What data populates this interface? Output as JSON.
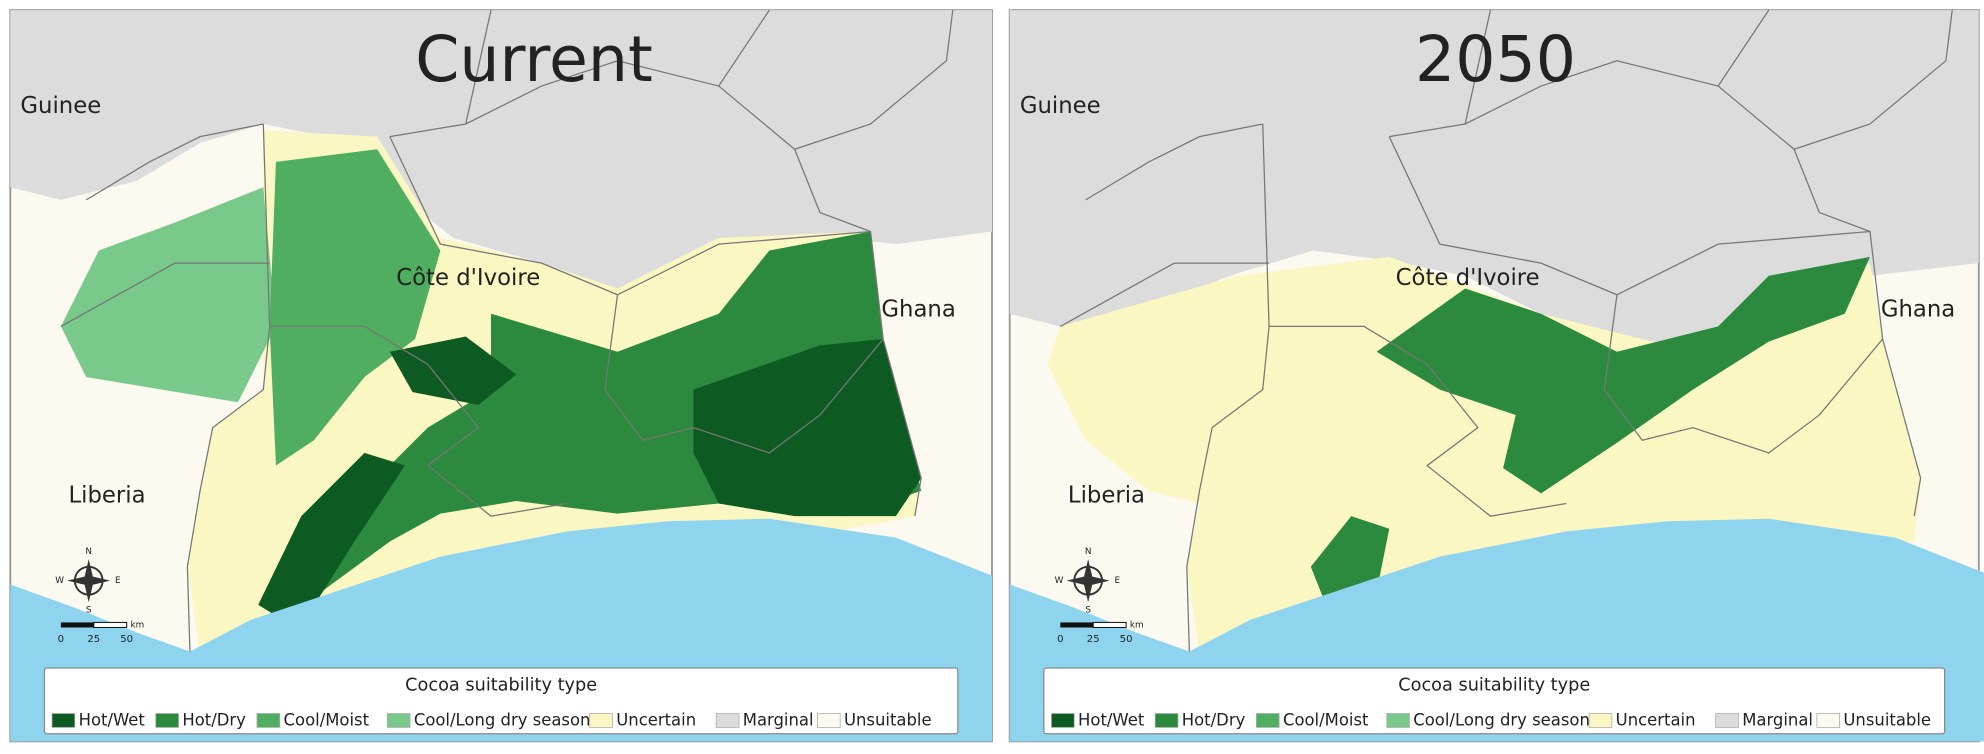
{
  "panels": [
    {
      "title": "Current"
    },
    {
      "title": "2050"
    }
  ],
  "places": [
    "Guinee",
    "Côte d'Ivoire",
    "Ghana",
    "Liberia"
  ],
  "compass": [
    "N",
    "E",
    "S",
    "W"
  ],
  "scale": {
    "ticks": [
      0,
      25,
      50
    ],
    "unit": "km"
  },
  "legend": {
    "title": "Cocoa suitability type",
    "items": [
      {
        "label": "Hot/Wet",
        "color": "#0d5a22"
      },
      {
        "label": "Hot/Dry",
        "color": "#2b8a3e"
      },
      {
        "label": "Cool/Moist",
        "color": "#4fae5f"
      },
      {
        "label": "Cool/Long dry season",
        "color": "#78c98a"
      },
      {
        "label": "Uncertain",
        "color": "#fbf7c2"
      },
      {
        "label": "Marginal",
        "color": "#dcdcdc"
      },
      {
        "label": "Unsuitable",
        "color": "#fbf9f0"
      }
    ]
  }
}
